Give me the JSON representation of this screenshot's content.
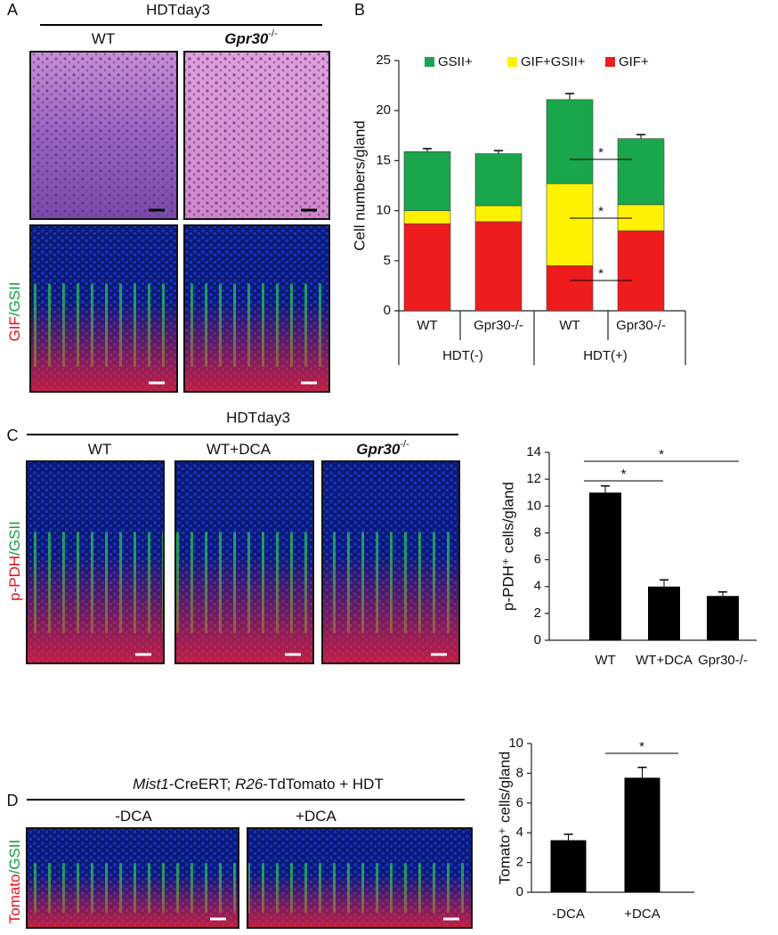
{
  "figure": {
    "panel_a": {
      "letter": "A",
      "header": "HDTday3",
      "columns": [
        {
          "name": "WT"
        },
        {
          "name": "Gpr30",
          "sup": "-/-"
        }
      ],
      "stain": [
        "GIF",
        "/GSII"
      ]
    },
    "panel_b": {
      "letter": "B"
    },
    "panel_c": {
      "letter": "C",
      "header": "HDTday3",
      "columns": [
        {
          "name": "WT"
        },
        {
          "name": "WT+DCA"
        },
        {
          "name": "Gpr30",
          "sup": "-/-"
        }
      ],
      "stain": [
        "p-PDH",
        "/GSII"
      ]
    },
    "panel_d": {
      "letter": "D",
      "header": [
        "Mist1",
        "-CreERT; ",
        "R26",
        "-TdTomato + HDT"
      ],
      "columns": [
        {
          "name": "-DCA"
        },
        {
          "name": "+DCA"
        }
      ],
      "stain": [
        "Tomato",
        "/GSII"
      ]
    }
  },
  "chart_data": [
    {
      "type": "bar",
      "stacked": true,
      "y_label": "Cell numbers/gland",
      "categories": [
        "WT",
        "Gpr30-/-",
        "WT",
        "Gpr30-/-"
      ],
      "groups": [
        "HDT(-)",
        "HDT(+)"
      ],
      "series": [
        {
          "name": "GIF+",
          "color": "#ee1c1c",
          "values": [
            8.7,
            8.9,
            4.5,
            8.0
          ],
          "errors": [
            0.3,
            0.4,
            0.4,
            0.3
          ]
        },
        {
          "name": "GIF+GSII+",
          "color": "#fff200",
          "values": [
            1.3,
            1.6,
            8.2,
            2.6
          ],
          "errors": [
            0.2,
            0.2,
            0.4,
            0.2
          ]
        },
        {
          "name": "GSII+",
          "color": "#1aa64a",
          "values": [
            5.9,
            5.2,
            8.4,
            6.6
          ],
          "errors": [
            0.3,
            0.3,
            0.6,
            0.4
          ]
        }
      ],
      "ylim": [
        0,
        25
      ],
      "yticks": [
        0,
        5,
        10,
        15,
        20,
        25
      ],
      "annotations": [
        "*",
        "*",
        "*"
      ]
    },
    {
      "type": "bar",
      "y_label": "p-PDH⁺ cells/gland",
      "color": "#000000",
      "categories": [
        "WT",
        "WT+DCA",
        "Gpr30-/-"
      ],
      "values": [
        11.0,
        4.0,
        3.3
      ],
      "errors": [
        0.5,
        0.5,
        0.3
      ],
      "ylim": [
        0,
        14
      ],
      "yticks": [
        0,
        2,
        4,
        6,
        8,
        10,
        12,
        14
      ],
      "annotations": [
        "*",
        "*"
      ]
    },
    {
      "type": "bar",
      "y_label": "Tomato⁺ cells/gland",
      "color": "#000000",
      "categories": [
        "-DCA",
        "+DCA"
      ],
      "values": [
        3.5,
        7.7
      ],
      "errors": [
        0.4,
        0.7
      ],
      "ylim": [
        0,
        10
      ],
      "yticks": [
        0,
        2,
        4,
        6,
        8,
        10
      ],
      "annotations": [
        "*"
      ]
    }
  ]
}
